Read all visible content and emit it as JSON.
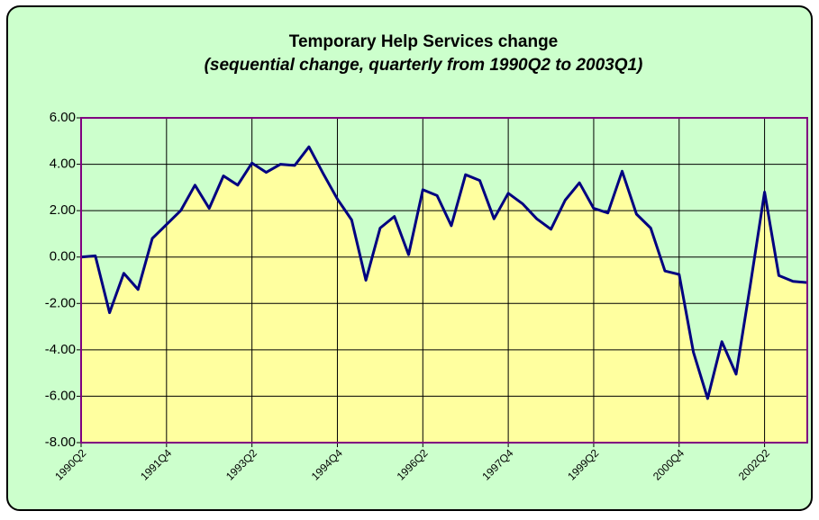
{
  "chart_data": {
    "type": "area",
    "title": "Temporary Help Services change",
    "subtitle": "(sequential change, quarterly from 1990Q2 to 2003Q1)",
    "categories": [
      "1990Q2",
      null,
      null,
      null,
      null,
      null,
      "1991Q4",
      null,
      null,
      null,
      null,
      null,
      "1993Q2",
      null,
      null,
      null,
      null,
      null,
      "1994Q4",
      null,
      null,
      null,
      null,
      null,
      "1996Q2",
      null,
      null,
      null,
      null,
      null,
      "1997Q4",
      null,
      null,
      null,
      null,
      null,
      "1999Q2",
      null,
      null,
      null,
      null,
      null,
      "2000Q4",
      null,
      null,
      null,
      null,
      null,
      "2002Q2",
      null,
      null,
      null
    ],
    "values": [
      0.0,
      0.05,
      -2.4,
      -0.7,
      -1.4,
      0.8,
      1.4,
      2.0,
      3.1,
      2.1,
      3.5,
      3.1,
      4.05,
      3.65,
      4.0,
      3.95,
      4.75,
      3.6,
      2.5,
      1.6,
      -1.0,
      1.25,
      1.75,
      0.1,
      2.9,
      2.65,
      1.35,
      3.55,
      3.3,
      1.65,
      2.75,
      2.3,
      1.65,
      1.2,
      2.45,
      3.2,
      2.1,
      1.9,
      3.7,
      1.85,
      1.25,
      -0.6,
      -0.75,
      -4.1,
      -6.1,
      -3.65,
      -5.05,
      -1.2,
      2.8,
      -0.8,
      -1.05,
      -1.1
    ],
    "color": "#000080",
    "fill": "#ffff9f",
    "ylim": [
      -8,
      6
    ],
    "yticks": [
      {
        "value": -8,
        "label": "-8.00"
      },
      {
        "value": -6,
        "label": "-6.00"
      },
      {
        "value": -4,
        "label": "-4.00"
      },
      {
        "value": -2,
        "label": "-2.00"
      },
      {
        "value": 0,
        "label": "0.00"
      },
      {
        "value": 2,
        "label": "2.00"
      },
      {
        "value": 4,
        "label": "4.00"
      },
      {
        "value": 6,
        "label": "6.00"
      }
    ],
    "grid": true
  }
}
